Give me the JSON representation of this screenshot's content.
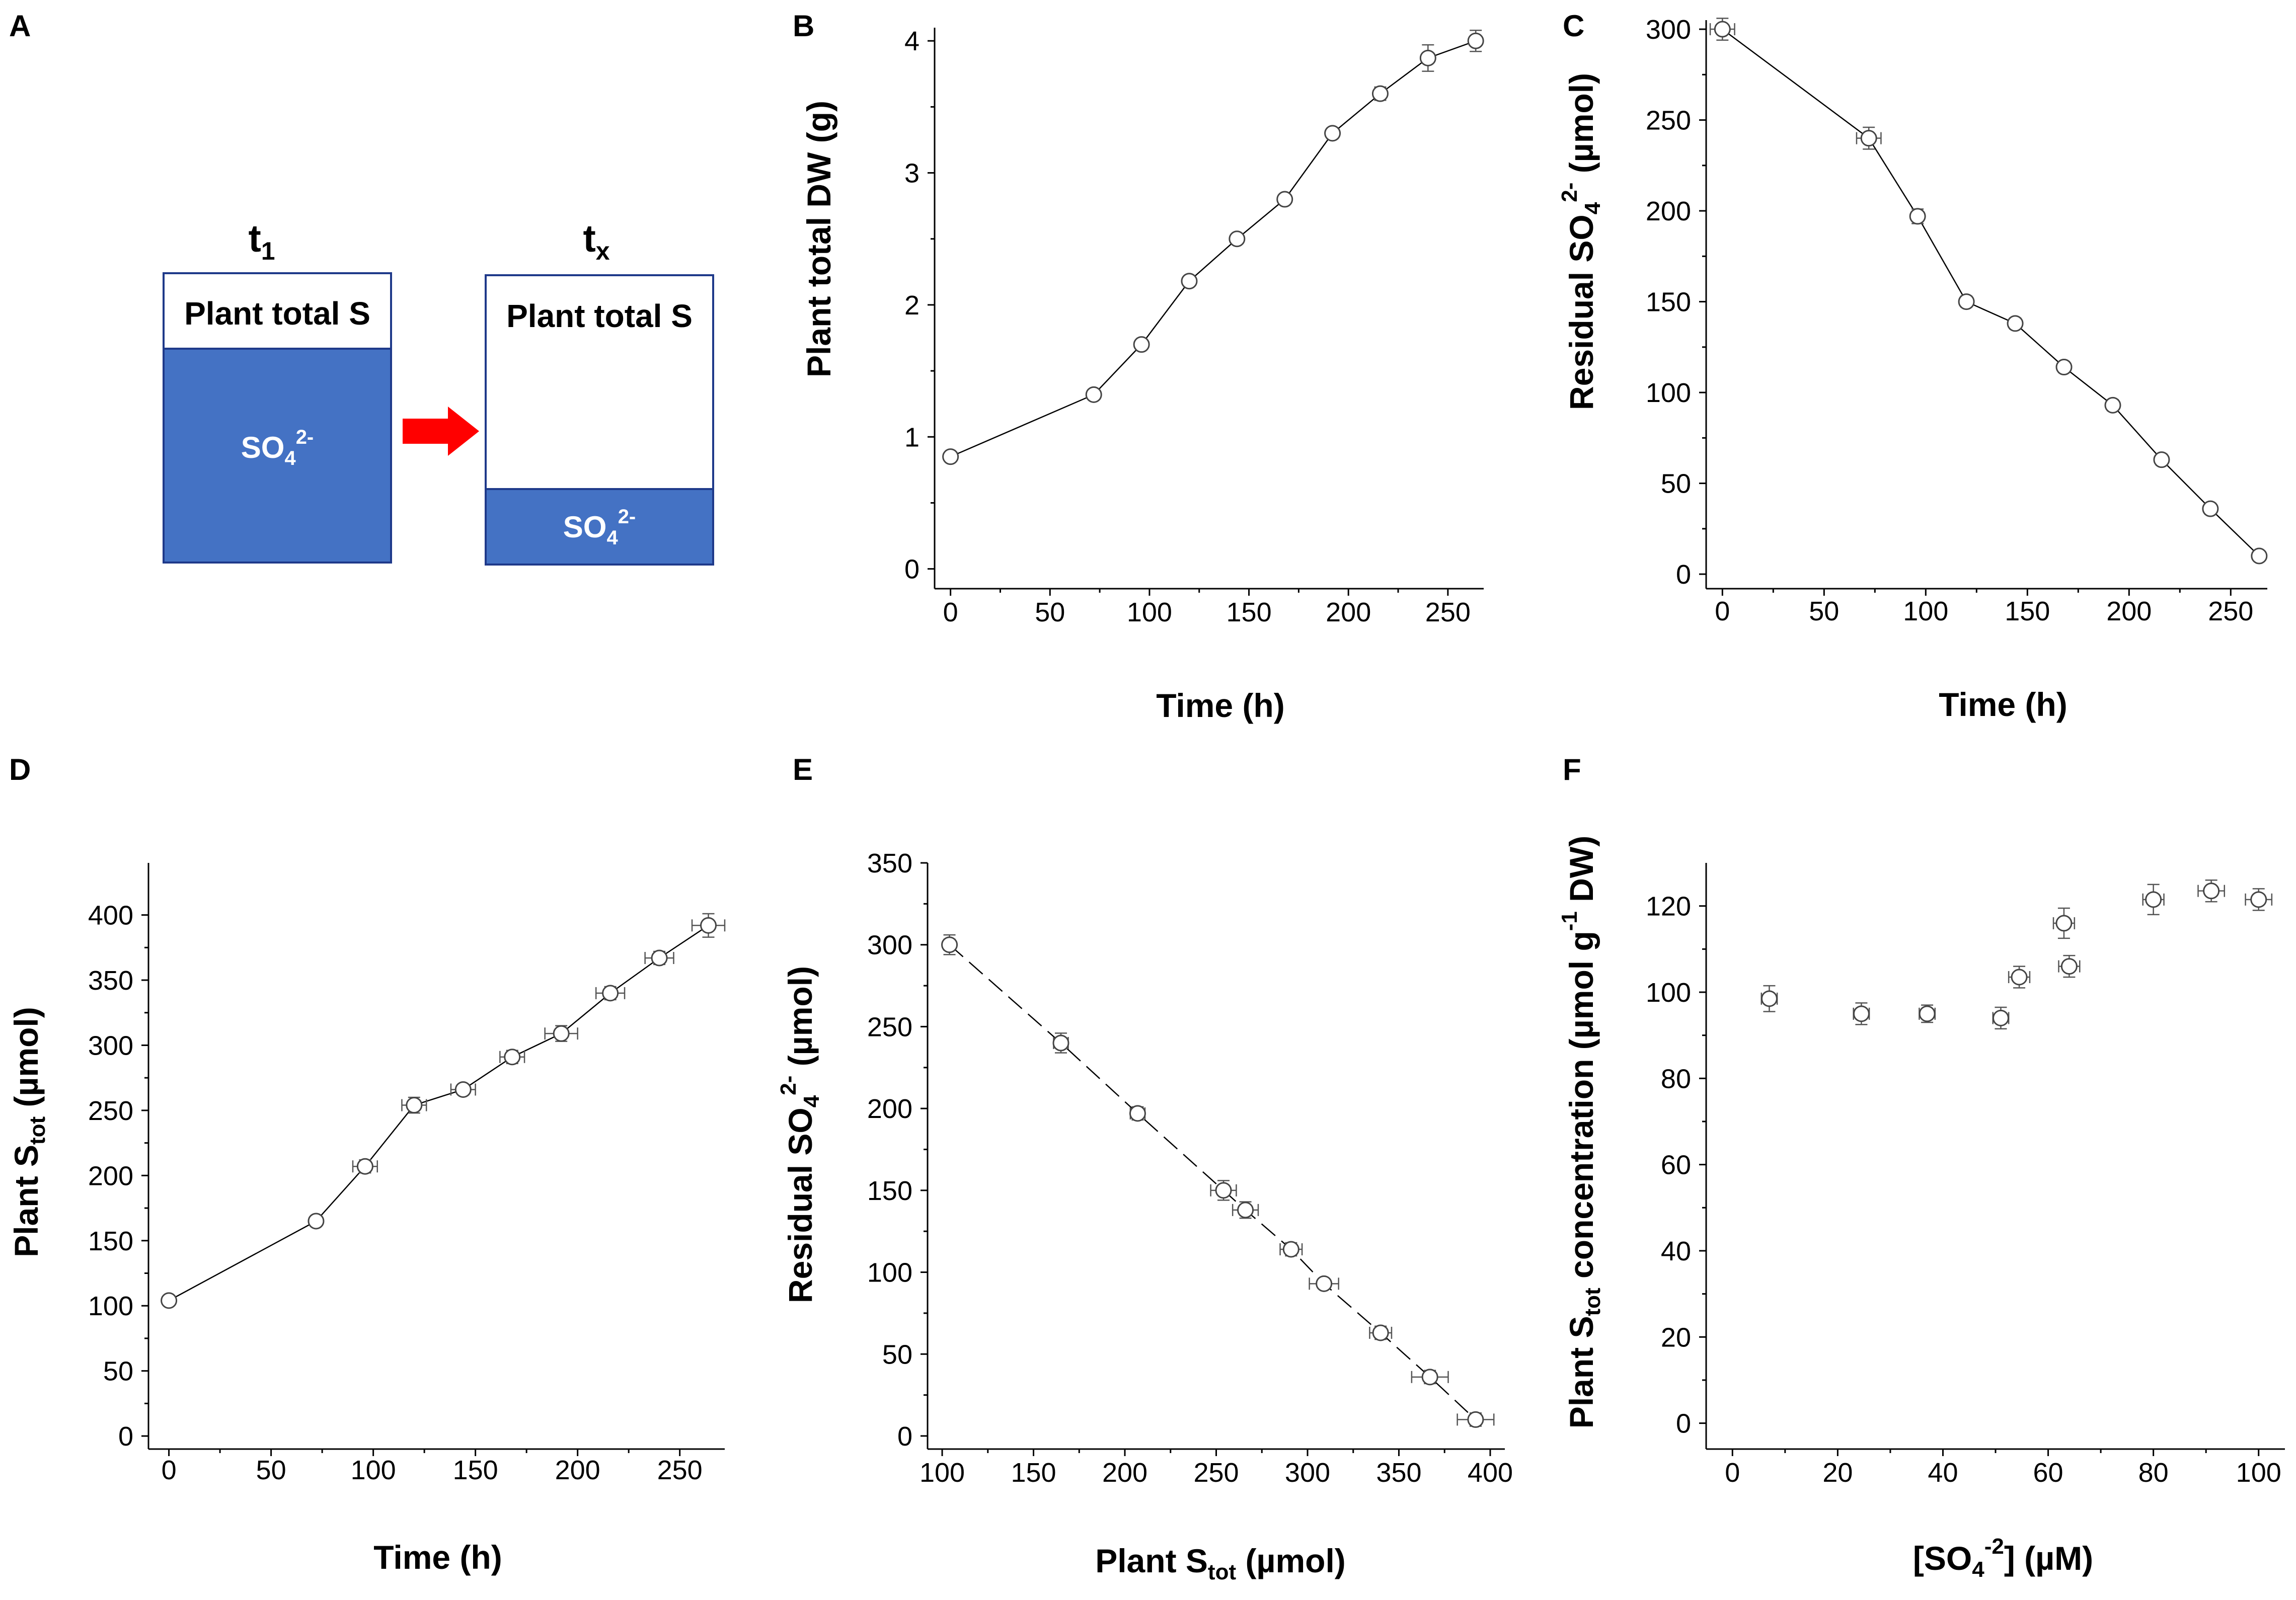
{
  "panels": {
    "A": {
      "label": "A",
      "t1": {
        "main": "t",
        "sub": "1"
      },
      "tx": {
        "main": "t",
        "sub": "x"
      },
      "box_label": "Plant total S",
      "so4": {
        "base": "SO",
        "sub": "4",
        "sup": "2-"
      },
      "colors": {
        "fill": "#4472C4",
        "border": "#1F3A8A",
        "arrow": "#FF0000"
      }
    },
    "B": {
      "label": "B"
    },
    "C": {
      "label": "C"
    },
    "D": {
      "label": "D"
    },
    "E": {
      "label": "E"
    },
    "F": {
      "label": "F"
    }
  },
  "chart_data": [
    {
      "panel": "B",
      "type": "line",
      "ylabel": "Plant total DW (g)",
      "xlabel": "Time (h)",
      "xlim": [
        -8,
        268
      ],
      "ylim": [
        -0.15,
        4.1
      ],
      "xticks": [
        0,
        50,
        100,
        150,
        200,
        250
      ],
      "yticks": [
        0,
        1,
        2,
        3,
        4
      ],
      "x": [
        0,
        72,
        96,
        120,
        144,
        168,
        192,
        216,
        240,
        264
      ],
      "y": [
        0.85,
        1.32,
        1.7,
        2.18,
        2.5,
        2.8,
        3.3,
        3.6,
        3.87,
        4.0
      ],
      "yerr": [
        0.02,
        0.03,
        0.03,
        0.03,
        0.03,
        0.03,
        0.04,
        0.05,
        0.1,
        0.08
      ],
      "xerr": [
        0,
        0,
        0,
        0,
        0,
        0,
        0,
        0,
        0,
        0
      ],
      "line": "solid"
    },
    {
      "panel": "C",
      "type": "line",
      "ylabel": "Residual SO4 2- (µmol)",
      "ylabel_parts": {
        "pre": "Residual SO",
        "sub": "4",
        "sup": "2-",
        "post": " (µmol)"
      },
      "xlabel": "Time (h)",
      "xlim": [
        -8,
        268
      ],
      "ylim": [
        -8,
        305
      ],
      "xticks": [
        0,
        50,
        100,
        150,
        200,
        250
      ],
      "yticks": [
        0,
        50,
        100,
        150,
        200,
        250,
        300
      ],
      "x": [
        0,
        72,
        96,
        120,
        144,
        168,
        192,
        216,
        240,
        264
      ],
      "y": [
        300,
        240,
        197,
        150,
        138,
        114,
        93,
        63,
        36,
        10
      ],
      "yerr": [
        6,
        6,
        4,
        3,
        3,
        3,
        3,
        3,
        3,
        2
      ],
      "xerr": [
        6,
        6,
        0,
        0,
        0,
        0,
        0,
        0,
        0,
        0
      ],
      "line": "solid"
    },
    {
      "panel": "D",
      "type": "line",
      "ylabel": "Plant Stot (µmol)",
      "ylabel_parts": {
        "pre": "Plant S",
        "sub": "tot",
        "post": " (µmol)"
      },
      "xlabel": "Time (h)",
      "xlim": [
        -10,
        272
      ],
      "ylim": [
        -10,
        440
      ],
      "xticks": [
        0,
        50,
        100,
        150,
        200,
        250
      ],
      "yticks": [
        0,
        50,
        100,
        150,
        200,
        250,
        300,
        350,
        400
      ],
      "x": [
        0,
        72,
        96,
        120,
        144,
        168,
        192,
        216,
        240,
        264
      ],
      "y": [
        104,
        165,
        207,
        254,
        266,
        291,
        309,
        340,
        367,
        392
      ],
      "yerr": [
        3,
        4,
        5,
        6,
        4,
        5,
        6,
        5,
        5,
        9
      ],
      "xerr": [
        0,
        0,
        6,
        6,
        6,
        6,
        8,
        7,
        7,
        8
      ],
      "line": "solid"
    },
    {
      "panel": "E",
      "type": "line",
      "ylabel": "Residual SO4 2- (µmol)",
      "ylabel_parts": {
        "pre": "Residual SO",
        "sub": "4",
        "sup": "2-",
        "post": " (µmol)"
      },
      "xlabel": "Plant Stot (µmol)",
      "xlabel_parts": {
        "pre": "Plant S",
        "sub": "tot",
        "post": " (µmol)"
      },
      "xlim": [
        92,
        408
      ],
      "ylim": [
        -8,
        350
      ],
      "xticks": [
        100,
        150,
        200,
        250,
        300,
        350,
        400
      ],
      "yticks": [
        0,
        50,
        100,
        150,
        200,
        250,
        300,
        350
      ],
      "x": [
        104,
        165,
        207,
        254,
        266,
        291,
        309,
        340,
        367,
        392
      ],
      "y": [
        300,
        240,
        197,
        150,
        138,
        114,
        93,
        63,
        36,
        10
      ],
      "yerr": [
        6,
        6,
        4,
        6,
        5,
        4,
        3,
        4,
        4,
        4
      ],
      "xerr": [
        3,
        4,
        4,
        7,
        7,
        6,
        8,
        6,
        10,
        10
      ],
      "line": "dashed"
    },
    {
      "panel": "F",
      "type": "scatter",
      "ylabel": "Plant Stot concentration (µmol g-1 DW)",
      "ylabel_parts": {
        "pre": "Plant S",
        "sub": "tot",
        "mid": " concentration (µmol g",
        "sup": "-1",
        "post": " DW)"
      },
      "xlabel": "[SO4-2] (µM)",
      "xlabel_parts": {
        "pre": "[SO",
        "sub": "4",
        "sup": "-2",
        "post": "] (µM)"
      },
      "xlim": [
        -5,
        105
      ],
      "ylim": [
        -6,
        130
      ],
      "xticks": [
        0,
        20,
        40,
        60,
        80,
        100
      ],
      "yticks": [
        0,
        20,
        40,
        60,
        80,
        100,
        120
      ],
      "x": [
        7,
        24.5,
        37,
        51,
        54.5,
        63,
        64,
        80,
        91,
        100
      ],
      "y": [
        98.5,
        95,
        95,
        94,
        103.5,
        116,
        106,
        121.5,
        123.5,
        121.5
      ],
      "yerr": [
        3,
        2.5,
        2,
        2.5,
        2.5,
        3.5,
        2.5,
        3.5,
        2.5,
        2.5
      ],
      "xerr": [
        1.5,
        1.5,
        1.5,
        1.5,
        2,
        2,
        2,
        2,
        2.5,
        2.5
      ],
      "line": "none"
    }
  ]
}
